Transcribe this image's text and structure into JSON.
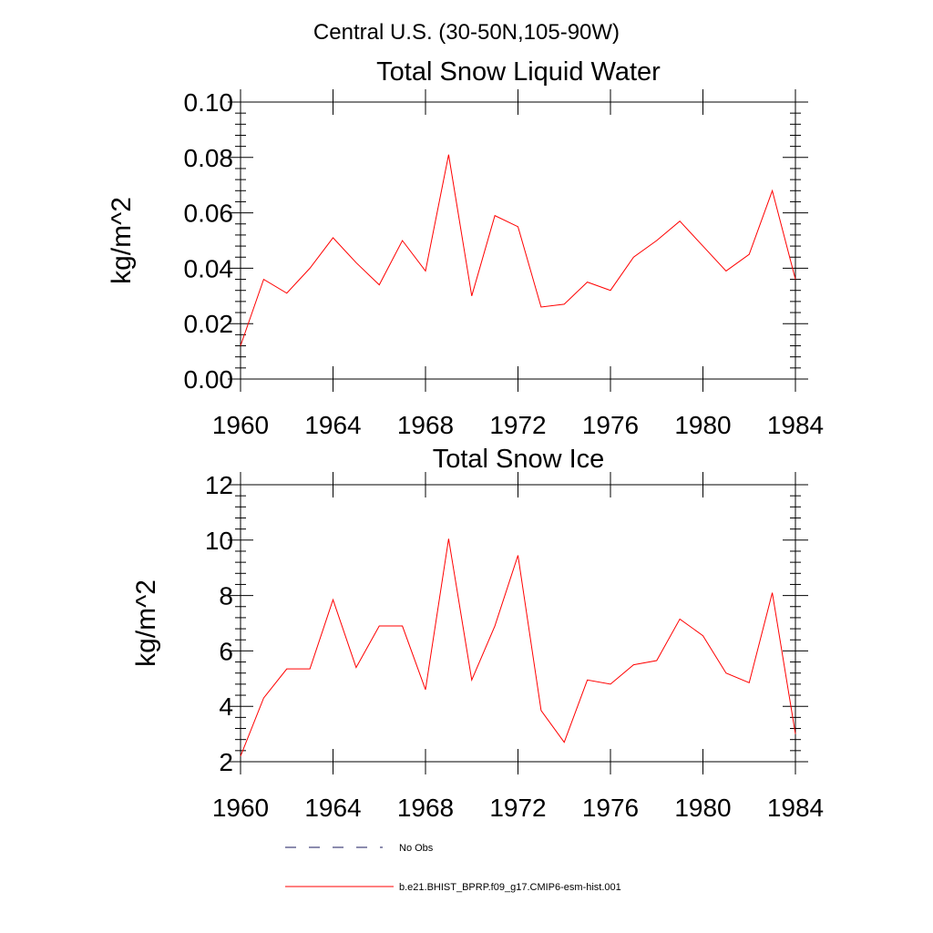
{
  "figure": {
    "suptitle": "Central U.S. (30-50N,105-90W)"
  },
  "chart_data": [
    {
      "type": "line",
      "title": "Total Snow Liquid Water",
      "xlabel": "",
      "ylabel": "kg/m^2",
      "xlim": [
        1960,
        1984
      ],
      "ylim": [
        0,
        0.1
      ],
      "x_ticks": [
        "1960",
        "1964",
        "1968",
        "1972",
        "1976",
        "1980",
        "1984"
      ],
      "y_ticks": [
        "0.00",
        "0.02",
        "0.04",
        "0.06",
        "0.08",
        "0.10"
      ],
      "x": [
        1960,
        1961,
        1962,
        1963,
        1964,
        1965,
        1966,
        1967,
        1968,
        1969,
        1970,
        1971,
        1972,
        1973,
        1974,
        1975,
        1976,
        1977,
        1978,
        1979,
        1980,
        1981,
        1982,
        1983,
        1984
      ],
      "series": [
        {
          "name": "b.e21.BHIST_BPRP.f09_g17.CMIP6-esm-hist.001",
          "color": "#ff0000",
          "values": [
            0.012,
            0.036,
            0.031,
            0.04,
            0.051,
            0.042,
            0.034,
            0.05,
            0.039,
            0.081,
            0.03,
            0.059,
            0.055,
            0.026,
            0.027,
            0.035,
            0.032,
            0.044,
            0.05,
            0.057,
            0.048,
            0.039,
            0.045,
            0.068,
            0.036
          ]
        }
      ],
      "grid": false
    },
    {
      "type": "line",
      "title": "Total Snow Ice",
      "xlabel": "",
      "ylabel": "kg/m^2",
      "xlim": [
        1960,
        1984
      ],
      "ylim": [
        2,
        12
      ],
      "x_ticks": [
        "1960",
        "1964",
        "1968",
        "1972",
        "1976",
        "1980",
        "1984"
      ],
      "y_ticks": [
        "2",
        "4",
        "6",
        "8",
        "10",
        "12"
      ],
      "x": [
        1960,
        1961,
        1962,
        1963,
        1964,
        1965,
        1966,
        1967,
        1968,
        1969,
        1970,
        1971,
        1972,
        1973,
        1974,
        1975,
        1976,
        1977,
        1978,
        1979,
        1980,
        1981,
        1982,
        1983,
        1984
      ],
      "series": [
        {
          "name": "b.e21.BHIST_BPRP.f09_g17.CMIP6-esm-hist.001",
          "color": "#ff0000",
          "values": [
            2.2,
            4.3,
            5.35,
            5.35,
            7.85,
            5.4,
            6.9,
            6.9,
            4.6,
            10.05,
            4.95,
            6.9,
            9.45,
            3.85,
            2.7,
            4.95,
            4.8,
            5.5,
            5.65,
            7.15,
            6.55,
            5.2,
            4.85,
            8.1,
            3.0
          ]
        }
      ],
      "grid": false
    }
  ],
  "legend": {
    "items": [
      {
        "label": "No Obs",
        "style": "dashed",
        "color": "#00004d"
      },
      {
        "label": "b.e21.BHIST_BPRP.f09_g17.CMIP6-esm-hist.001",
        "style": "solid",
        "color": "#ff0000"
      }
    ]
  }
}
